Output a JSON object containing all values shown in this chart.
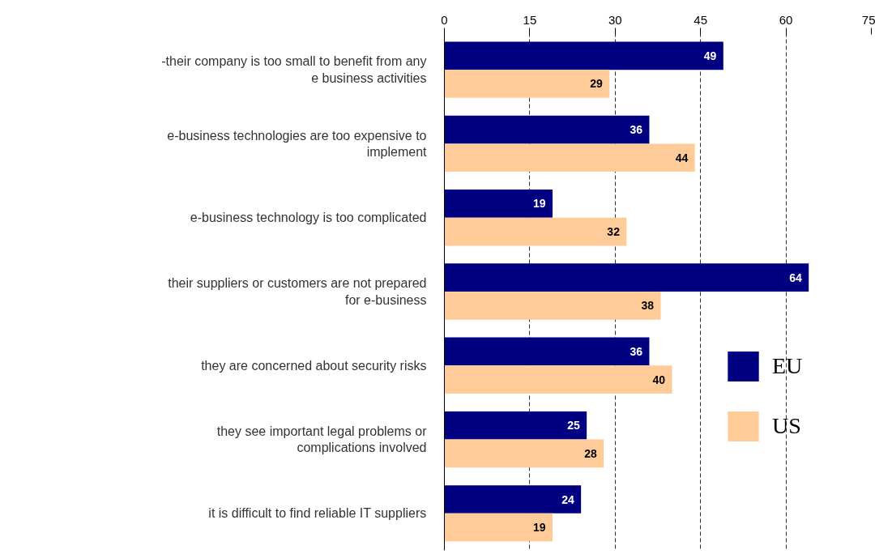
{
  "chart_data": {
    "type": "bar",
    "orientation": "horizontal",
    "categories": [
      "-their company is too small to benefit from any e business activities",
      "e-business technologies are too expensive to implement",
      "e-business technology is too complicated",
      "their suppliers or customers are not prepared for e-business",
      "they are concerned about security risks",
      "they see important legal problems or complications involved",
      "it is difficult to find reliable IT suppliers"
    ],
    "series": [
      {
        "name": "EU",
        "color": "#000080",
        "values": [
          49,
          36,
          19,
          64,
          36,
          25,
          24
        ]
      },
      {
        "name": "US",
        "color": "#ffcc99",
        "values": [
          29,
          44,
          32,
          38,
          40,
          28,
          19
        ]
      }
    ],
    "xlim": [
      0,
      75
    ],
    "xticks": [
      0,
      15,
      30,
      45,
      60,
      75
    ],
    "grid": "x",
    "legend": "bottom right",
    "data_labels": true
  }
}
